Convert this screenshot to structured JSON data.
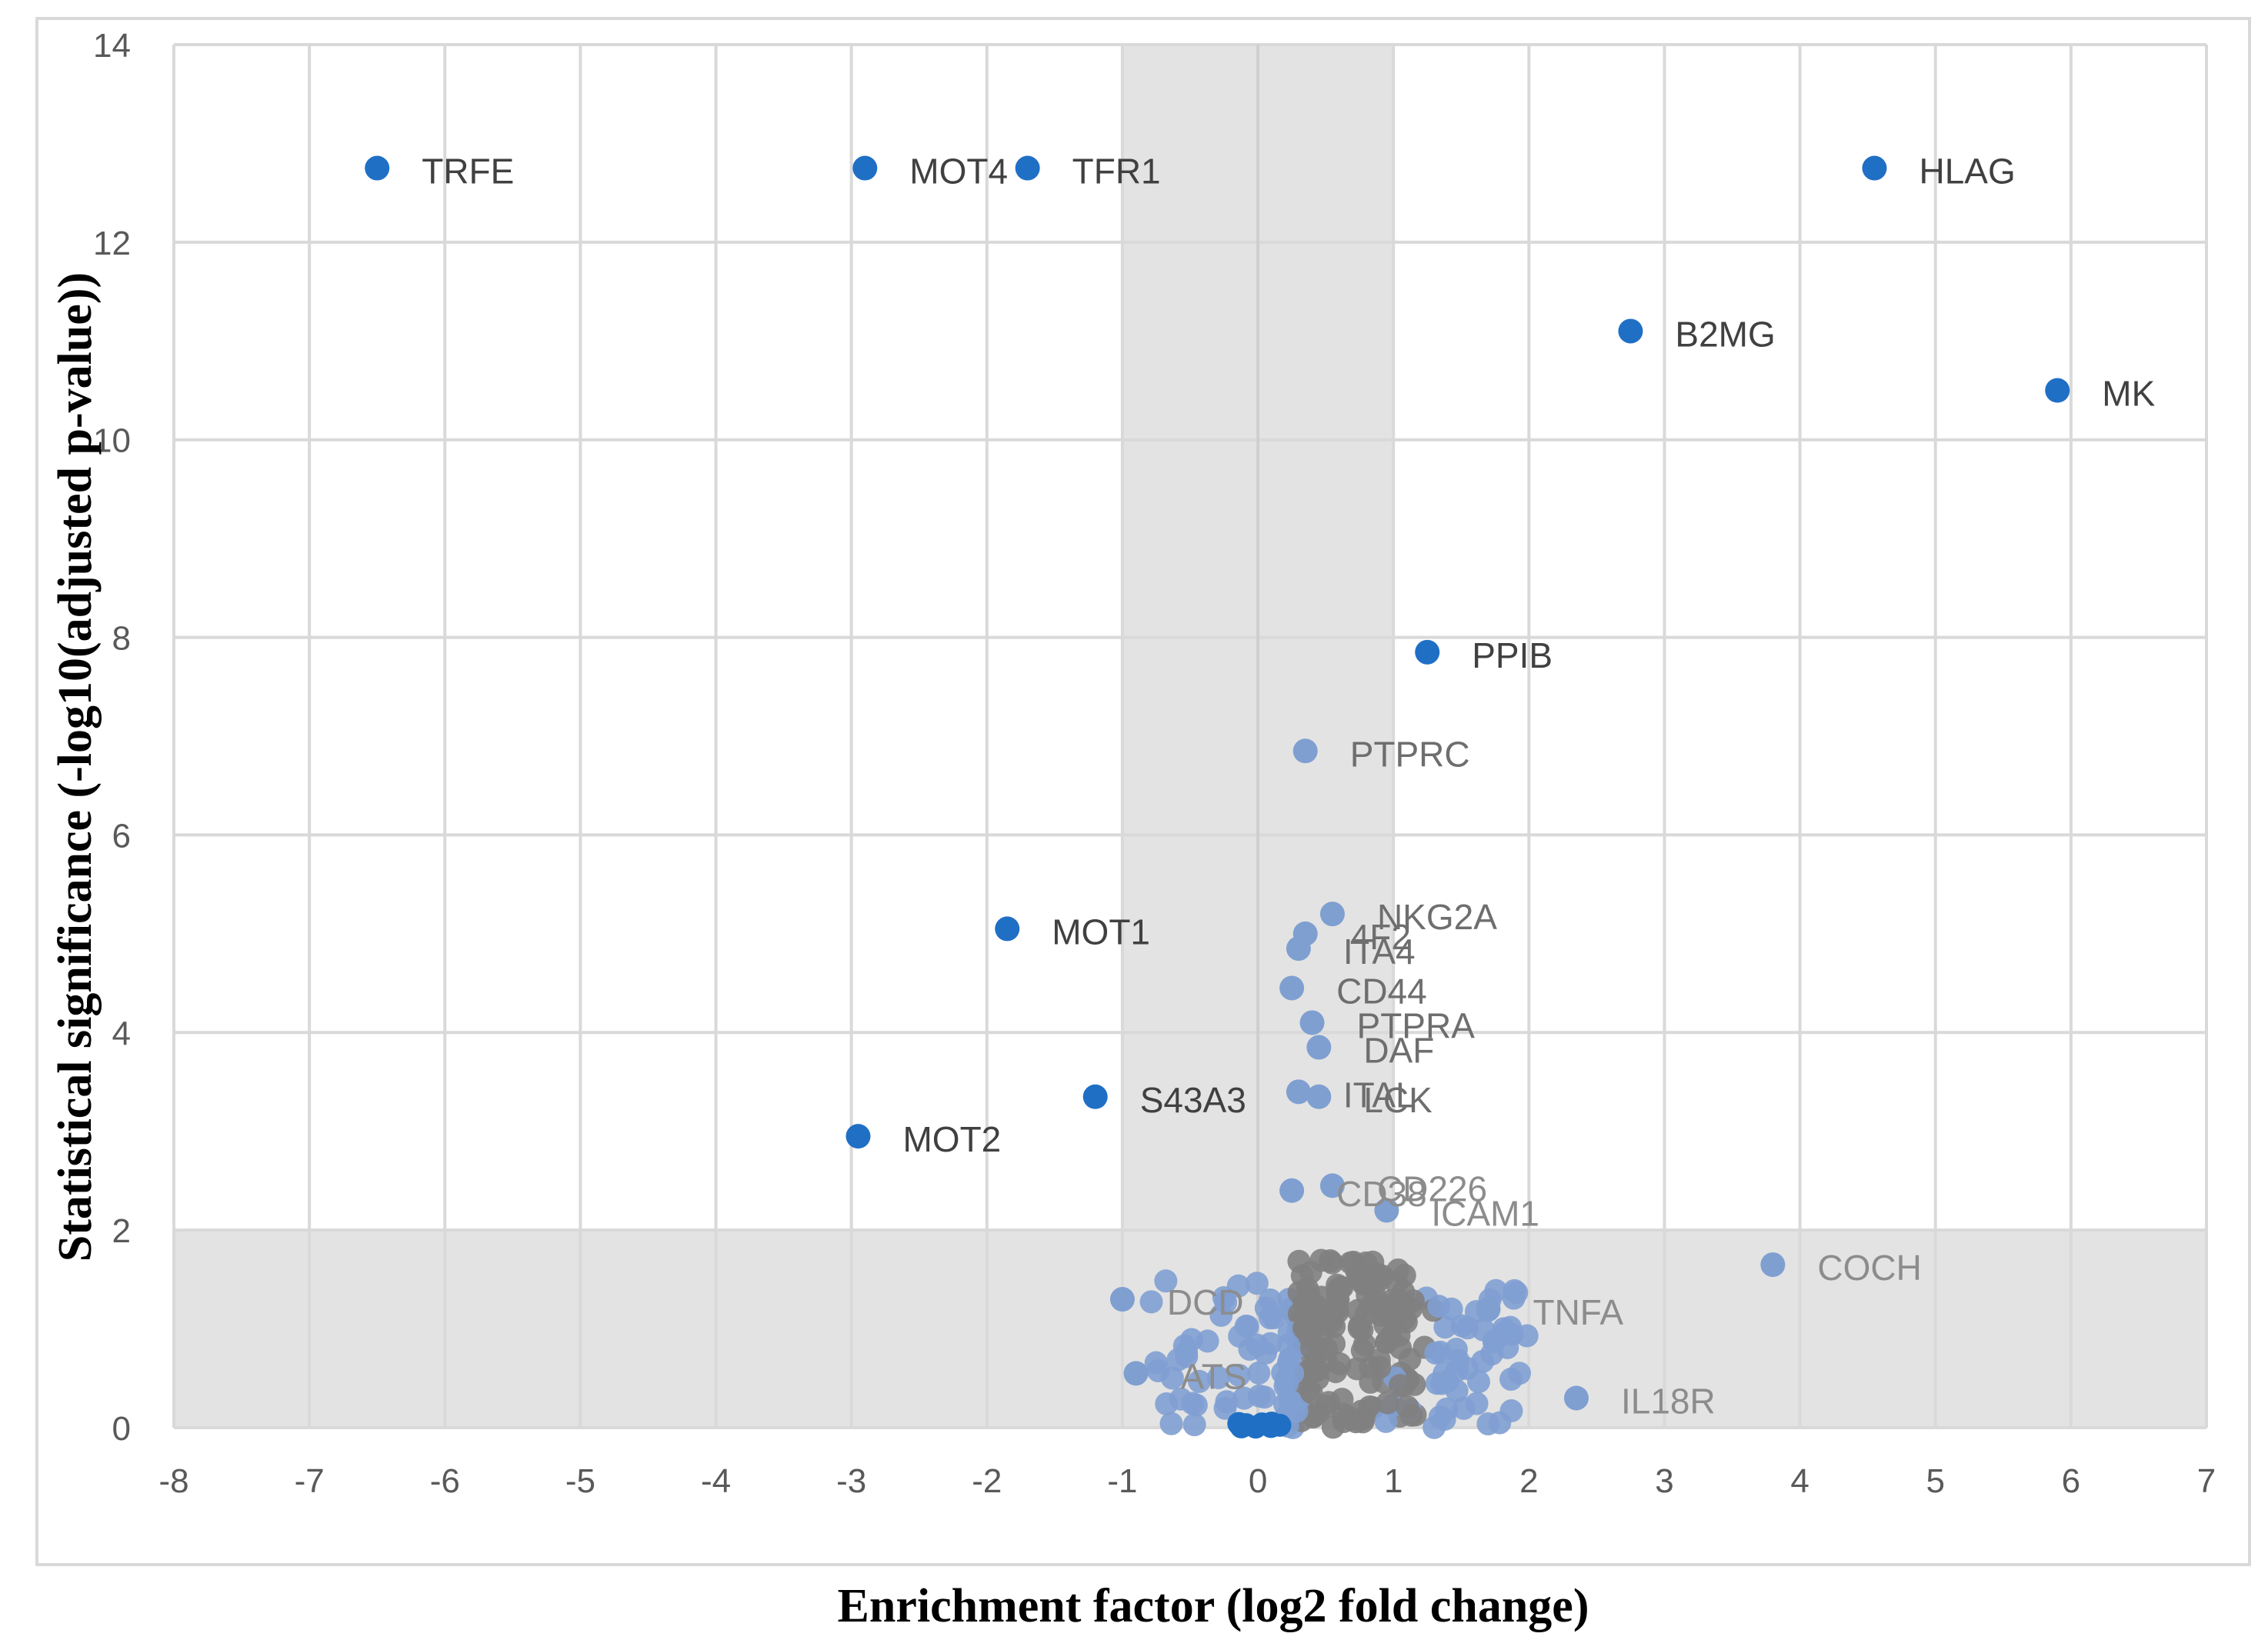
{
  "chart_data": {
    "type": "scatter",
    "title": "",
    "xlabel": "Enrichment factor (log2 fold change)",
    "ylabel": "Statistical significance (-log10(adjusted p-value))",
    "xlim": [
      -8,
      7
    ],
    "ylim": [
      0,
      14
    ],
    "x_ticks": [
      "-8",
      "-7",
      "-6",
      "-5",
      "-4",
      "-3",
      "-2",
      "-1",
      "0",
      "1",
      "2",
      "3",
      "4",
      "5",
      "6",
      "7"
    ],
    "y_ticks": [
      "0",
      "2",
      "4",
      "6",
      "8",
      "10",
      "12",
      "14"
    ],
    "grid": true,
    "legend": "none",
    "thresholds": {
      "x_band": [
        -1,
        1
      ],
      "y_band_max": 2
    },
    "colors": {
      "significant": "#1f6fc5",
      "other": "#7f9fd1",
      "dense": "#808080"
    },
    "labeled_points": [
      {
        "label": "TRFE",
        "x": -6.5,
        "y": 12.75,
        "group": "significant"
      },
      {
        "label": "MOT4",
        "x": -2.9,
        "y": 12.75,
        "group": "significant"
      },
      {
        "label": "TFR1",
        "x": -1.7,
        "y": 12.75,
        "group": "significant"
      },
      {
        "label": "HLAG",
        "x": 4.55,
        "y": 12.75,
        "group": "significant"
      },
      {
        "label": "B2MG",
        "x": 2.75,
        "y": 11.1,
        "group": "significant"
      },
      {
        "label": "MK",
        "x": 5.9,
        "y": 10.5,
        "group": "significant"
      },
      {
        "label": "PPIB",
        "x": 1.25,
        "y": 7.85,
        "group": "significant"
      },
      {
        "label": "MOT1",
        "x": -1.85,
        "y": 5.05,
        "group": "significant"
      },
      {
        "label": "S43A3",
        "x": -1.2,
        "y": 3.35,
        "group": "significant"
      },
      {
        "label": "MOT2",
        "x": -2.95,
        "y": 2.95,
        "group": "significant"
      },
      {
        "label": "PTPRC",
        "x": 0.35,
        "y": 6.85,
        "group": "other"
      },
      {
        "label": "NKG2A",
        "x": 0.55,
        "y": 5.2,
        "group": "other"
      },
      {
        "label": "4F2",
        "x": 0.35,
        "y": 5.0,
        "group": "other"
      },
      {
        "label": "ITA4",
        "x": 0.3,
        "y": 4.85,
        "group": "other"
      },
      {
        "label": "CD44",
        "x": 0.25,
        "y": 4.45,
        "group": "other"
      },
      {
        "label": "PTPRA",
        "x": 0.4,
        "y": 4.1,
        "group": "other"
      },
      {
        "label": "DAF",
        "x": 0.45,
        "y": 3.85,
        "group": "other"
      },
      {
        "label": "ITAL",
        "x": 0.3,
        "y": 3.4,
        "group": "other"
      },
      {
        "label": "LCK",
        "x": 0.45,
        "y": 3.35,
        "group": "other"
      },
      {
        "label": "CD226",
        "x": 0.55,
        "y": 2.45,
        "group": "other"
      },
      {
        "label": "CD38",
        "x": 0.25,
        "y": 2.4,
        "group": "other"
      },
      {
        "label": "ICAM1",
        "x": 0.95,
        "y": 2.2,
        "group": "other"
      },
      {
        "label": "COCH",
        "x": 3.8,
        "y": 1.65,
        "group": "other"
      },
      {
        "label": "TNFA",
        "x": 1.7,
        "y": 1.2,
        "group": "other"
      },
      {
        "label": "IL18R",
        "x": 2.35,
        "y": 0.3,
        "group": "other"
      },
      {
        "label": "DCD",
        "x": -1.0,
        "y": 1.3,
        "group": "other"
      },
      {
        "label": "ATS",
        "x": -0.9,
        "y": 0.55,
        "group": "other"
      }
    ]
  }
}
